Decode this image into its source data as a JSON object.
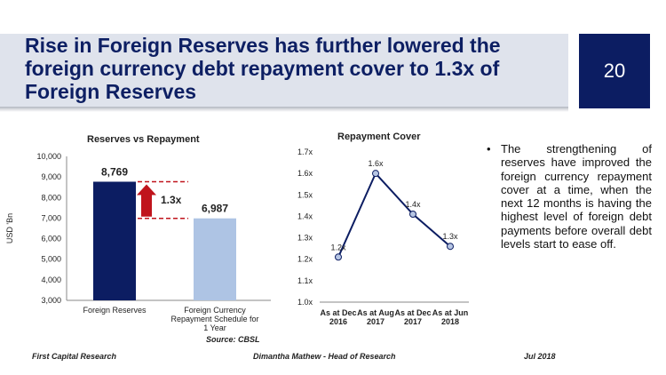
{
  "slide": {
    "title": "Rise in Foreign Reserves has further lowered the foreign currency debt repayment cover to 1.3x of Foreign Reserves",
    "page_number": "20",
    "bullet": "The strengthening of reserves have improved the foreign currency repayment cover at a time, when the next 12 months is having the highest level of foreign debt payments before overall debt levels start to ease off.",
    "source": "Source: CBSL",
    "footer": {
      "left": "First Capital Research",
      "center": "Dimantha Mathew - Head of Research",
      "right": "Jul 2018"
    },
    "colors": {
      "title_text": "#0d1f63",
      "title_band": "#dfe3ec",
      "accent_dark_blue": "#0c1d62",
      "bar_light_blue": "#aec4e4",
      "arrow_red": "#c0141c"
    }
  },
  "chart_data": [
    {
      "type": "bar",
      "title": "Reserves vs Repayment",
      "ylabel": "USD 'Bn",
      "categories": [
        "Foreign Reserves",
        "Foreign Currency Repayment Schedule for 1 Year"
      ],
      "category_lines": [
        [
          "Foreign Reserves"
        ],
        [
          "Foreign Currency",
          "Repayment Schedule for",
          "1 Year"
        ]
      ],
      "values": [
        8769,
        6987
      ],
      "value_labels": [
        "8,769",
        "6,987"
      ],
      "ylim": [
        3000,
        10000
      ],
      "yticks": [
        "3,000",
        "4,000",
        "5,000",
        "6,000",
        "7,000",
        "8,000",
        "9,000",
        "10,000"
      ],
      "annotation": "1.3x",
      "grid": false
    },
    {
      "type": "line",
      "title": "Repayment Cover",
      "categories": [
        "As at Dec 2016",
        "As at Aug 2017",
        "As at Dec 2017",
        "As at Jun 2018"
      ],
      "category_lines": [
        [
          "As at Dec",
          "2016"
        ],
        [
          "As at Aug",
          "2017"
        ],
        [
          "As at Dec",
          "2017"
        ],
        [
          "As at Jun",
          "2018"
        ]
      ],
      "values": [
        1.21,
        1.6,
        1.41,
        1.26
      ],
      "value_labels": [
        "1.2x",
        "1.6x",
        "1.4x",
        "1.3x"
      ],
      "ylim": [
        1.0,
        1.7
      ],
      "yticks": [
        "1.0x",
        "1.1x",
        "1.2x",
        "1.3x",
        "1.4x",
        "1.5x",
        "1.6x",
        "1.7x"
      ],
      "grid": false
    }
  ]
}
